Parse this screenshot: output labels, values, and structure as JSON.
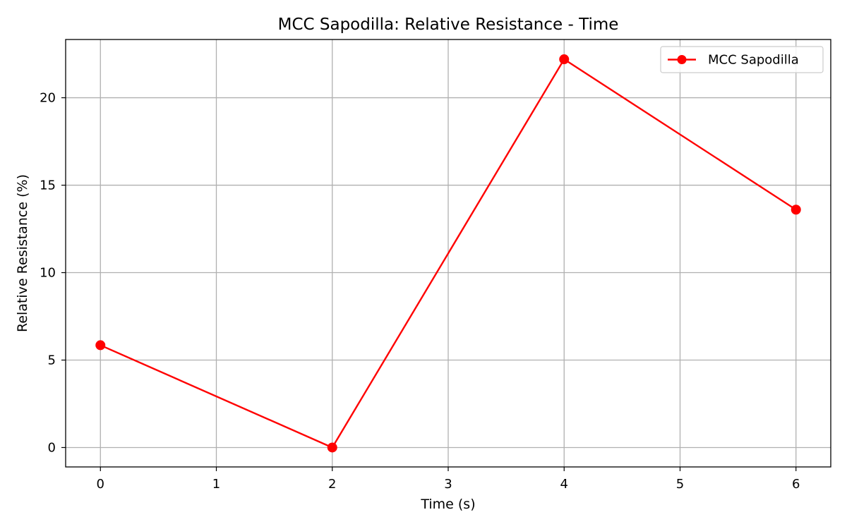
{
  "chart_data": {
    "type": "line",
    "title": "MCC Sapodilla: Relative Resistance - Time",
    "xlabel": "Time (s)",
    "ylabel": "Relative Resistance (%)",
    "xlim": [
      -0.3,
      6.3
    ],
    "ylim": [
      -1.11,
      23.33
    ],
    "xticks": [
      0,
      1,
      2,
      3,
      4,
      5,
      6
    ],
    "yticks": [
      0,
      5,
      10,
      15,
      20
    ],
    "grid": true,
    "legend_position": "top-right",
    "series": [
      {
        "name": "MCC Sapodilla",
        "color": "#ff0000",
        "marker": "circle",
        "x": [
          0,
          2,
          4,
          6
        ],
        "y": [
          5.85,
          0,
          22.2,
          13.6
        ]
      }
    ]
  }
}
